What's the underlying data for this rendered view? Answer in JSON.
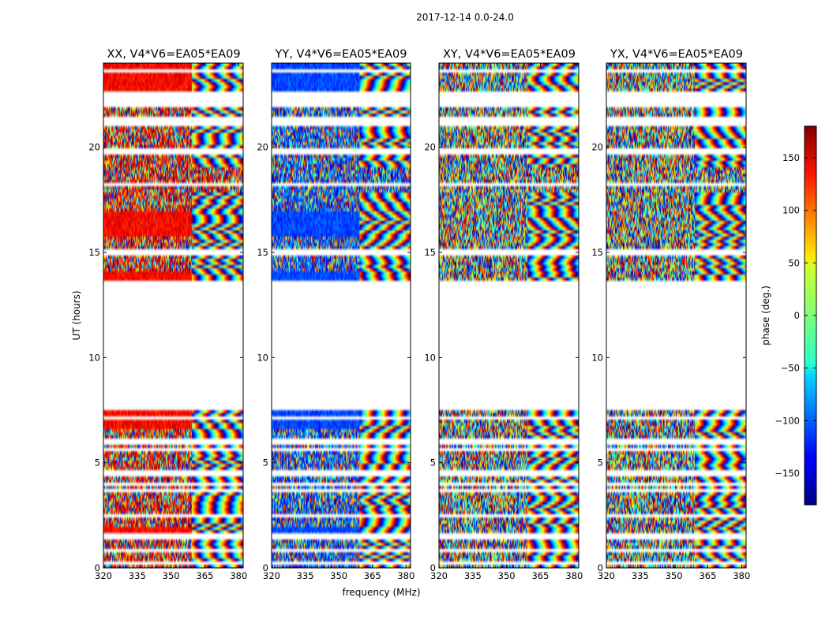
{
  "chart_data": {
    "type": "heatmap",
    "suptitle": "2017-12-14 0.0-24.0",
    "xlabel": "frequency (MHz)",
    "ylabel": "UT (hours)",
    "xlim": [
      320,
      382
    ],
    "ylim": [
      0,
      24
    ],
    "xticks": [
      320,
      335,
      350,
      365,
      380
    ],
    "yticks": [
      0,
      5,
      10,
      15,
      20
    ],
    "colorbar": {
      "label": "phase (deg.)",
      "range": [
        -180,
        180
      ],
      "ticks": [
        150,
        100,
        50,
        0,
        -50,
        -100,
        -150
      ],
      "tick_labels": [
        "150",
        "100",
        "50",
        "0",
        "−50",
        "−100",
        "−150"
      ],
      "colormap": "jet"
    },
    "flagged_ut_ranges": [
      [
        7.5,
        13.7
      ],
      [
        22.6,
        21.9
      ],
      [
        19.6,
        19.9
      ],
      [
        21.0,
        21.3
      ],
      [
        4.3,
        4.6
      ],
      [
        1.4,
        1.6
      ],
      [
        0.15,
        0.25
      ]
    ],
    "panels": [
      {
        "title": "XX, V4*V6=EA05*EA09",
        "pol": "XX",
        "mean_phase_deg": 135,
        "noise": 0.55
      },
      {
        "title": "YY, V4*V6=EA05*EA09",
        "pol": "YY",
        "mean_phase_deg": -110,
        "noise": 0.55
      },
      {
        "title": "XY, V4*V6=EA05*EA09",
        "pol": "XY",
        "mean_phase_deg": 0,
        "noise": 1.0
      },
      {
        "title": "YX, V4*V6=EA05*EA09",
        "pol": "YX",
        "mean_phase_deg": 0,
        "noise": 1.0
      }
    ]
  }
}
